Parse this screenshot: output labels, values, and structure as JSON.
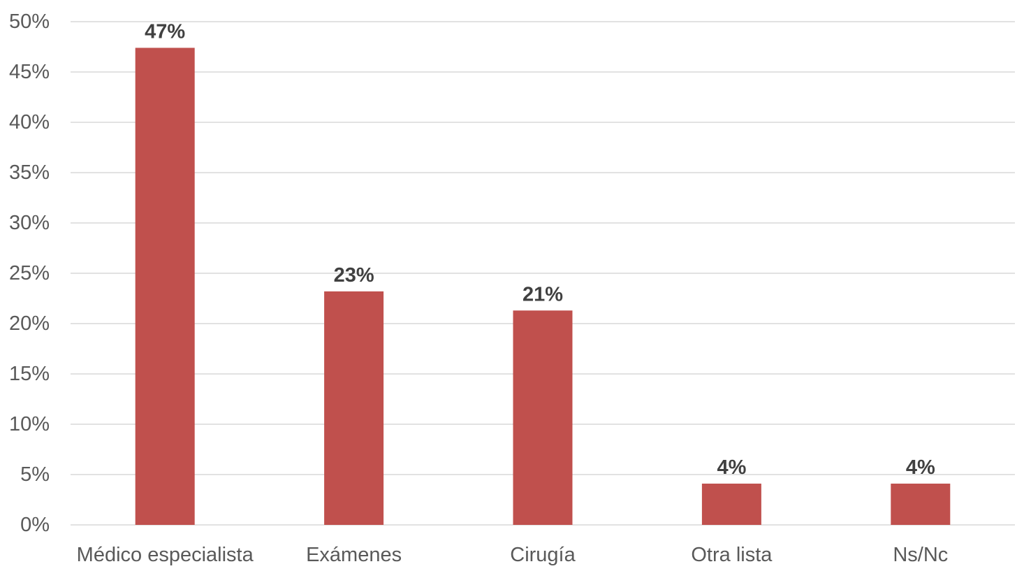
{
  "chart_data": {
    "type": "bar",
    "categories": [
      "Médico especialista",
      "Exámenes",
      "Cirugía",
      "Otra lista",
      "Ns/Nc"
    ],
    "values": [
      47.4,
      23.2,
      21.3,
      4.1,
      4.1
    ],
    "data_labels": [
      "47%",
      "23%",
      "21%",
      "4%",
      "4%"
    ],
    "title": "",
    "xlabel": "",
    "ylabel": "",
    "ylim": [
      0,
      50
    ],
    "y_ticks": [
      0,
      5,
      10,
      15,
      20,
      25,
      30,
      35,
      40,
      45,
      50
    ],
    "y_tick_labels": [
      "0%",
      "5%",
      "10%",
      "15%",
      "20%",
      "25%",
      "30%",
      "35%",
      "40%",
      "45%",
      "50%"
    ],
    "grid": true,
    "legend": "none",
    "bar_color": "#c0504d"
  }
}
